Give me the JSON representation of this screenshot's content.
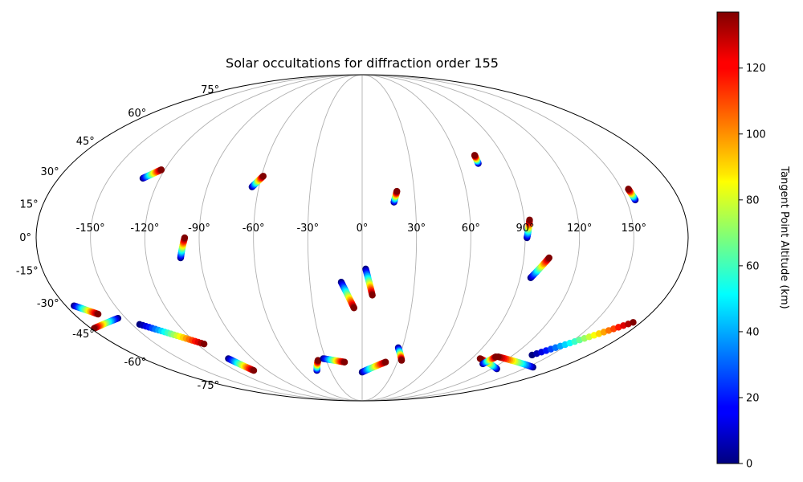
{
  "chart_data": {
    "type": "scatter",
    "projection": "mollweide",
    "title": "Solar occultations for diffraction order 155",
    "colorbar": {
      "label": "Tangent Point Altitude (km)",
      "range": [
        0,
        137
      ],
      "ticks": [
        "0",
        "20",
        "40",
        "60",
        "80",
        "100",
        "120"
      ],
      "tick_values": [
        0,
        20,
        40,
        60,
        80,
        100,
        120
      ],
      "colormap": "jet"
    },
    "lon_ticks": [
      "-150°",
      "-120°",
      "-90°",
      "-60°",
      "-30°",
      "0°",
      "30°",
      "60°",
      "90°",
      "120°",
      "150°"
    ],
    "lat_ticks": [
      "-75°",
      "-60°",
      "-45°",
      "-30°",
      "-15°",
      "0°",
      "15°",
      "30°",
      "45°",
      "60°",
      "75°"
    ],
    "grid": true,
    "occultations": [
      {
        "start": [
          -130,
          27
        ],
        "end": [
          -122,
          31
        ]
      },
      {
        "start": [
          -64,
          23
        ],
        "end": [
          -59,
          28
        ]
      },
      {
        "start": [
          18,
          16
        ],
        "end": [
          20,
          21
        ]
      },
      {
        "start": [
          72,
          34
        ],
        "end": [
          72,
          38
        ]
      },
      {
        "start": [
          155,
          17
        ],
        "end": [
          154,
          22
        ]
      },
      {
        "start": [
          -101,
          -9
        ],
        "end": [
          -98,
          0
        ]
      },
      {
        "start": [
          91,
          0
        ],
        "end": [
          93,
          8
        ]
      },
      {
        "start": [
          96,
          -18
        ],
        "end": [
          104,
          -9
        ]
      },
      {
        "start": [
          2,
          -14
        ],
        "end": [
          6,
          -26
        ]
      },
      {
        "start": [
          -12,
          -20
        ],
        "end": [
          -5,
          -32
        ]
      },
      {
        "start": [
          -175,
          -31
        ],
        "end": [
          -165,
          -35
        ]
      },
      {
        "start": [
          -145,
          -40
        ],
        "end": [
          -115,
          -50
        ]
      },
      {
        "start": [
          -110,
          -58
        ],
        "end": [
          -103,
          -65
        ]
      },
      {
        "start": [
          -43,
          -65
        ],
        "end": [
          -37,
          -59
        ]
      },
      {
        "start": [
          -32,
          -58
        ],
        "end": [
          -15,
          -60
        ]
      },
      {
        "start": [
          0,
          -66
        ],
        "end": [
          20,
          -60
        ]
      },
      {
        "start": [
          27,
          -52
        ],
        "end": [
          33,
          -59
        ]
      },
      {
        "start": [
          125,
          -64
        ],
        "end": [
          97,
          -58
        ]
      },
      {
        "start": [
          105,
          -61
        ],
        "end": [
          108,
          -57
        ]
      },
      {
        "start": [
          135,
          -56
        ],
        "end": [
          175,
          -39
        ]
      },
      {
        "start": [
          205,
          -37
        ],
        "end": [
          182,
          -42
        ]
      },
      {
        "start": [
          155,
          -63
        ],
        "end": [
          110,
          -57
        ]
      }
    ]
  }
}
